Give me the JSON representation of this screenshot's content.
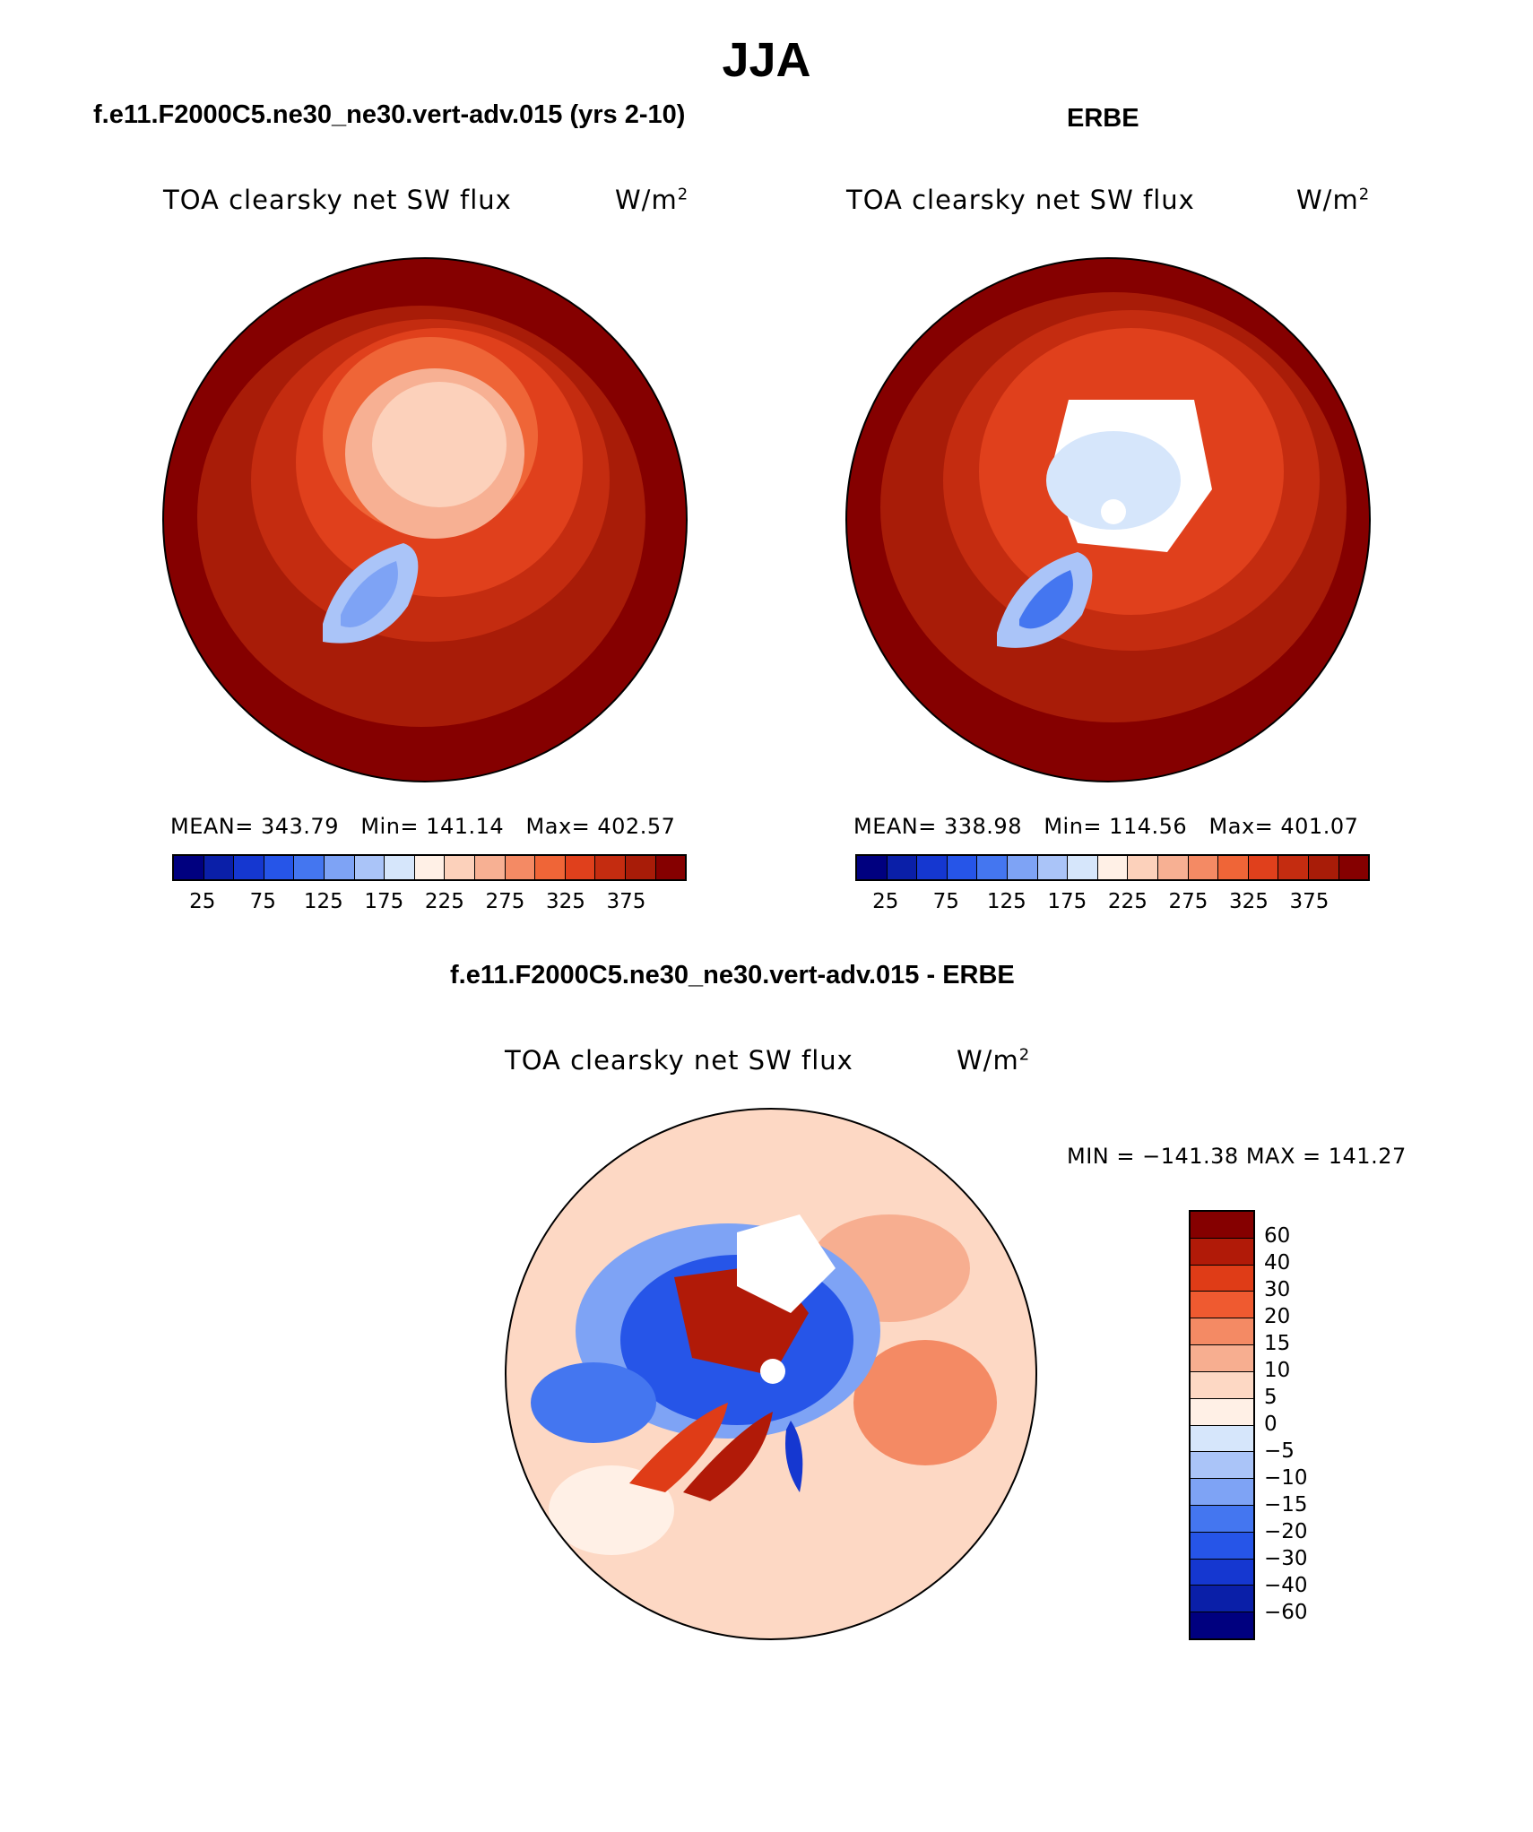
{
  "figure": {
    "season": "JJA",
    "left_panel": {
      "case": "f.e11.F2000C5.ne30_ne30.vert-adv.015 (yrs 2-10)",
      "title": "TOA clearsky net SW flux",
      "units_base": "W/m",
      "units_sup": "2",
      "stats": "MEAN= 343.79   Min= 141.14   Max= 402.57"
    },
    "right_panel": {
      "case": "ERBE",
      "title": "TOA clearsky net SW flux",
      "units_base": "W/m",
      "units_sup": "2",
      "stats": "MEAN= 338.98   Min= 114.56   Max= 401.07"
    },
    "diff_panel": {
      "case": "f.e11.F2000C5.ne30_ne30.vert-adv.015 - ERBE",
      "title": "TOA clearsky net SW flux",
      "units_base": "W/m",
      "units_sup": "2",
      "minmax": "MIN = −141.38 MAX = 141.27"
    }
  },
  "colorbar_abs": {
    "colors": [
      "#00007f",
      "#0a1fa8",
      "#1537d0",
      "#2655e8",
      "#4476f0",
      "#7ea3f5",
      "#aac4f8",
      "#d6e6fb",
      "#fff0e6",
      "#fcd1bb",
      "#f7b093",
      "#f48a64",
      "#ef6537",
      "#e0401c",
      "#c42c10",
      "#a81c08",
      "#850000"
    ],
    "labels": [
      "25",
      "75",
      "125",
      "175",
      "225",
      "275",
      "325",
      "375"
    ]
  },
  "colorbar_diff": {
    "colors": [
      "#850000",
      "#b11a08",
      "#df3c17",
      "#ef5a30",
      "#f48a64",
      "#f7ae90",
      "#fdd8c4",
      "#fff0e6",
      "#d6e6fb",
      "#aac4f8",
      "#7ea3f5",
      "#4476f0",
      "#2655e8",
      "#1537d0",
      "#0a1fa8",
      "#00007f"
    ],
    "labels": [
      "60",
      "40",
      "30",
      "20",
      "15",
      "10",
      "5",
      "0",
      "−5",
      "−10",
      "−15",
      "−20",
      "−30",
      "−40",
      "−60"
    ]
  }
}
